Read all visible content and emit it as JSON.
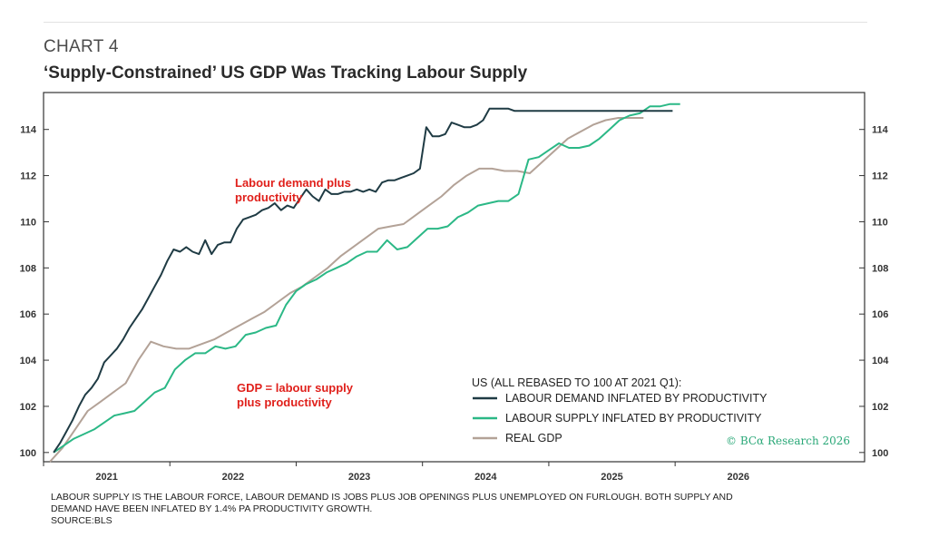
{
  "header": {
    "chart_number": "CHART 4",
    "title": "‘Supply-Constrained’ US GDP Was Tracking Labour Supply"
  },
  "chart_data": {
    "type": "line",
    "title": "‘Supply-Constrained’ US GDP Was Tracking Labour Supply",
    "xlabel": "",
    "ylabel": "",
    "xlim": [
      2020.5,
      2027.0
    ],
    "ylim": [
      99.6,
      115.6
    ],
    "x_ticks": [
      "2021",
      "2022",
      "2023",
      "2024",
      "2025",
      "2026"
    ],
    "y_ticks": [
      100,
      102,
      104,
      106,
      108,
      110,
      112,
      114
    ],
    "legend_title": "US (ALL REBASED TO 100 AT 2021 Q1):",
    "series": [
      {
        "name": "LABOUR DEMAND INFLATED BY PRODUCTIVITY",
        "color": "#1f3b44",
        "x": [
          2020.58,
          2020.63,
          2020.68,
          2020.73,
          2020.78,
          2020.83,
          2020.88,
          2020.93,
          2020.98,
          2021.03,
          2021.08,
          2021.13,
          2021.18,
          2021.23,
          2021.28,
          2021.33,
          2021.38,
          2021.43,
          2021.48,
          2021.53,
          2021.58,
          2021.63,
          2021.68,
          2021.73,
          2021.78,
          2021.83,
          2021.88,
          2021.93,
          2021.98,
          2022.03,
          2022.08,
          2022.13,
          2022.18,
          2022.23,
          2022.28,
          2022.33,
          2022.38,
          2022.43,
          2022.48,
          2022.53,
          2022.58,
          2022.63,
          2022.68,
          2022.73,
          2022.78,
          2022.83,
          2022.88,
          2022.93,
          2022.98,
          2023.03,
          2023.08,
          2023.13,
          2023.18,
          2023.23,
          2023.28,
          2023.33,
          2023.38,
          2023.43,
          2023.48,
          2023.53,
          2023.58,
          2023.63,
          2023.68,
          2023.73,
          2023.78,
          2023.83,
          2023.88,
          2023.93,
          2023.98,
          2024.03,
          2024.08,
          2024.13,
          2024.18,
          2024.23,
          2024.28,
          2024.33,
          2024.38,
          2024.43,
          2024.48,
          2024.53,
          2024.58,
          2024.63,
          2024.68,
          2024.73,
          2024.78,
          2024.83,
          2024.88,
          2024.93,
          2024.98,
          2025.03,
          2025.08,
          2025.13,
          2025.18,
          2025.23,
          2025.28,
          2025.33,
          2025.38,
          2025.43,
          2025.48
        ],
        "values": [
          100.0,
          100.4,
          100.9,
          101.4,
          102.0,
          102.5,
          102.8,
          103.2,
          103.9,
          104.2,
          104.5,
          104.9,
          105.4,
          105.8,
          106.2,
          106.7,
          107.2,
          107.7,
          108.3,
          108.8,
          108.7,
          108.9,
          108.7,
          108.6,
          109.2,
          108.6,
          109.0,
          109.1,
          109.1,
          109.7,
          110.1,
          110.2,
          110.3,
          110.5,
          110.6,
          110.8,
          110.5,
          110.7,
          110.6,
          111.0,
          111.4,
          111.1,
          110.9,
          111.4,
          111.2,
          111.2,
          111.3,
          111.3,
          111.4,
          111.3,
          111.4,
          111.3,
          111.7,
          111.8,
          111.8,
          111.9,
          112.0,
          112.1,
          112.3,
          114.1,
          113.7,
          113.7,
          113.8,
          114.3,
          114.2,
          114.1,
          114.1,
          114.2,
          114.4,
          114.9,
          114.9,
          114.9,
          114.9,
          114.8,
          114.8,
          114.8,
          114.8,
          114.8,
          114.8,
          114.8,
          114.8,
          114.8,
          114.8,
          114.8,
          114.8,
          114.8,
          114.8,
          114.8,
          114.8,
          114.8,
          114.8,
          114.8,
          114.8,
          114.8,
          114.8,
          114.8,
          114.8,
          114.8,
          114.8
        ]
      },
      {
        "name": "LABOUR SUPPLY INFLATED BY PRODUCTIVITY",
        "color": "#2bb886",
        "x": [
          2020.58,
          2020.66,
          2020.74,
          2020.82,
          2020.9,
          2020.98,
          2021.06,
          2021.14,
          2021.22,
          2021.3,
          2021.38,
          2021.46,
          2021.54,
          2021.62,
          2021.7,
          2021.78,
          2021.86,
          2021.94,
          2022.02,
          2022.1,
          2022.18,
          2022.26,
          2022.34,
          2022.42,
          2022.5,
          2022.58,
          2022.66,
          2022.74,
          2022.82,
          2022.9,
          2022.98,
          2023.06,
          2023.14,
          2023.22,
          2023.3,
          2023.38,
          2023.46,
          2023.54,
          2023.62,
          2023.7,
          2023.78,
          2023.86,
          2023.94,
          2024.02,
          2024.1,
          2024.18,
          2024.26,
          2024.34,
          2024.42,
          2024.5,
          2024.58,
          2024.66,
          2024.74,
          2024.82,
          2024.9,
          2024.98,
          2025.06,
          2025.14,
          2025.22,
          2025.3,
          2025.38,
          2025.46,
          2025.54
        ],
        "values": [
          100.0,
          100.3,
          100.6,
          100.8,
          101.0,
          101.3,
          101.6,
          101.7,
          101.8,
          102.2,
          102.6,
          102.8,
          103.6,
          104.0,
          104.3,
          104.3,
          104.6,
          104.5,
          104.6,
          105.1,
          105.2,
          105.4,
          105.5,
          106.4,
          107.0,
          107.3,
          107.5,
          107.8,
          108.0,
          108.2,
          108.5,
          108.7,
          108.7,
          109.2,
          108.8,
          108.9,
          109.3,
          109.7,
          109.7,
          109.8,
          110.2,
          110.4,
          110.7,
          110.8,
          110.9,
          110.9,
          111.2,
          112.7,
          112.8,
          113.1,
          113.4,
          113.2,
          113.2,
          113.3,
          113.6,
          114.0,
          114.4,
          114.6,
          114.7,
          115.0,
          115.0,
          115.1,
          115.1
        ]
      },
      {
        "name": "REAL GDP",
        "color": "#b3a297",
        "x": [
          2020.55,
          2020.65,
          2020.75,
          2020.85,
          2020.95,
          2021.05,
          2021.15,
          2021.25,
          2021.35,
          2021.45,
          2021.55,
          2021.65,
          2021.75,
          2021.85,
          2021.95,
          2022.05,
          2022.15,
          2022.25,
          2022.35,
          2022.45,
          2022.55,
          2022.65,
          2022.75,
          2022.85,
          2022.95,
          2023.05,
          2023.15,
          2023.25,
          2023.35,
          2023.45,
          2023.55,
          2023.65,
          2023.75,
          2023.85,
          2023.95,
          2024.05,
          2024.15,
          2024.25,
          2024.35,
          2024.45,
          2024.55,
          2024.65,
          2024.75,
          2024.85,
          2024.95,
          2025.05,
          2025.15,
          2025.25
        ],
        "values": [
          99.6,
          100.2,
          101.0,
          101.8,
          102.2,
          102.6,
          103.0,
          104.0,
          104.8,
          104.6,
          104.5,
          104.5,
          104.7,
          104.9,
          105.2,
          105.5,
          105.8,
          106.1,
          106.5,
          106.9,
          107.2,
          107.6,
          108.0,
          108.5,
          108.9,
          109.3,
          109.7,
          109.8,
          109.9,
          110.3,
          110.7,
          111.1,
          111.6,
          112.0,
          112.3,
          112.3,
          112.2,
          112.2,
          112.1,
          112.6,
          113.1,
          113.6,
          113.9,
          114.2,
          114.4,
          114.5,
          114.5,
          114.5
        ]
      }
    ]
  },
  "annotations": {
    "demand_line1": "Labour demand plus",
    "demand_line2": "productivity",
    "gdp_line1": "GDP = labour supply",
    "gdp_line2": "plus productivity"
  },
  "credit": "© BCα Research 2026",
  "footnote": {
    "line1": "LABOUR SUPPLY IS THE LABOUR FORCE, LABOUR DEMAND IS JOBS PLUS JOB OPENINGS PLUS UNEMPLOYED ON FURLOUGH. BOTH SUPPLY AND",
    "line2": "DEMAND HAVE BEEN INFLATED BY 1.4% PA PRODUCTIVITY GROWTH.",
    "line3": "SOURCE:BLS"
  }
}
